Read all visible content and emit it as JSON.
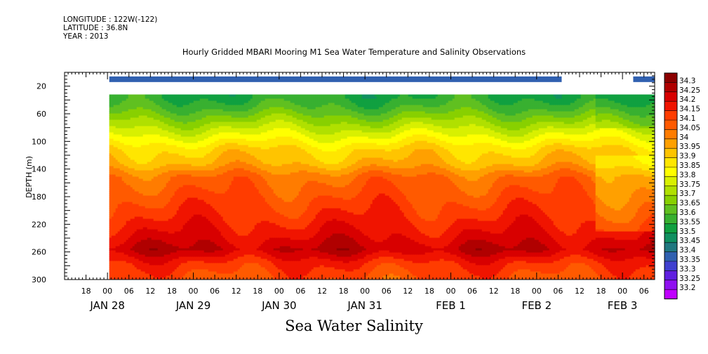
{
  "header": {
    "longitude": "LONGITUDE : 122W(-122)",
    "latitude": "LATITUDE : 36.8N",
    "year": "YEAR : 2013"
  },
  "title": "Hourly Gridded MBARI Mooring M1 Sea Water Temperature and Salinity Observations",
  "caption": "Sea Water Salinity",
  "chart_data": {
    "type": "heatmap",
    "title": "Hourly Gridded MBARI Mooring M1 Sea Water Temperature and Salinity Observations",
    "xlabel": "",
    "ylabel": "DEPTH (m)",
    "y_inverted": true,
    "ylim": [
      300,
      0
    ],
    "y_ticks": [
      20,
      60,
      100,
      140,
      180,
      220,
      260,
      300
    ],
    "x_start": "JAN 27 12:00",
    "x_end": "FEB 3 09:00",
    "x_tick_hours": [
      "18",
      "00",
      "06",
      "12",
      "18",
      "00",
      "06",
      "12",
      "18",
      "00",
      "06",
      "12",
      "18",
      "00",
      "06",
      "12",
      "18",
      "00",
      "06",
      "12",
      "18",
      "00",
      "06",
      "12",
      "18",
      "00",
      "06"
    ],
    "x_day_labels": [
      "JAN 28",
      "JAN 29",
      "JAN 30",
      "JAN 31",
      "FEB  1",
      "FEB  2",
      "FEB  3"
    ],
    "colorbar_levels": [
      34.3,
      34.25,
      34.2,
      34.15,
      34.1,
      34.05,
      34,
      33.95,
      33.9,
      33.85,
      33.8,
      33.75,
      33.7,
      33.65,
      33.6,
      33.55,
      33.5,
      33.45,
      33.4,
      33.35,
      33.3,
      33.25,
      33.2
    ],
    "colorbar_colors": [
      "#8c0000",
      "#b00000",
      "#d80000",
      "#f01400",
      "#ff3c00",
      "#ff5a00",
      "#ff7c00",
      "#ffa000",
      "#ffc400",
      "#ffe600",
      "#ffff00",
      "#d8f000",
      "#b0e000",
      "#88d000",
      "#60c020",
      "#38b030",
      "#10a040",
      "#109060",
      "#207880",
      "#3060b0",
      "#4040d0",
      "#6020e0",
      "#9010f0",
      "#c000ff"
    ],
    "surface_band": {
      "depth_m": 10,
      "value_approx": 33.35,
      "segments": [
        [
          "JAN 28 00:30",
          "FEB 2 07:00"
        ],
        [
          "FEB 3 03:00",
          "FEB 3 09:00"
        ]
      ]
    },
    "data_extent": {
      "x_start": "JAN 28 00:30",
      "x_end": "FEB 3 09:00",
      "depth_top_m": 32,
      "depth_bottom_m": 300
    },
    "mean_profile": [
      {
        "depth_m": 35,
        "value": 33.55
      },
      {
        "depth_m": 50,
        "value": 33.6
      },
      {
        "depth_m": 70,
        "value": 33.7
      },
      {
        "depth_m": 90,
        "value": 33.8
      },
      {
        "depth_m": 110,
        "value": 33.9
      },
      {
        "depth_m": 130,
        "value": 33.95
      },
      {
        "depth_m": 150,
        "value": 34.05
      },
      {
        "depth_m": 180,
        "value": 34.1
      },
      {
        "depth_m": 210,
        "value": 34.15
      },
      {
        "depth_m": 235,
        "value": 34.2
      },
      {
        "depth_m": 255,
        "value": 34.25
      },
      {
        "depth_m": 275,
        "value": 34.15
      },
      {
        "depth_m": 295,
        "value": 34.1
      }
    ]
  }
}
